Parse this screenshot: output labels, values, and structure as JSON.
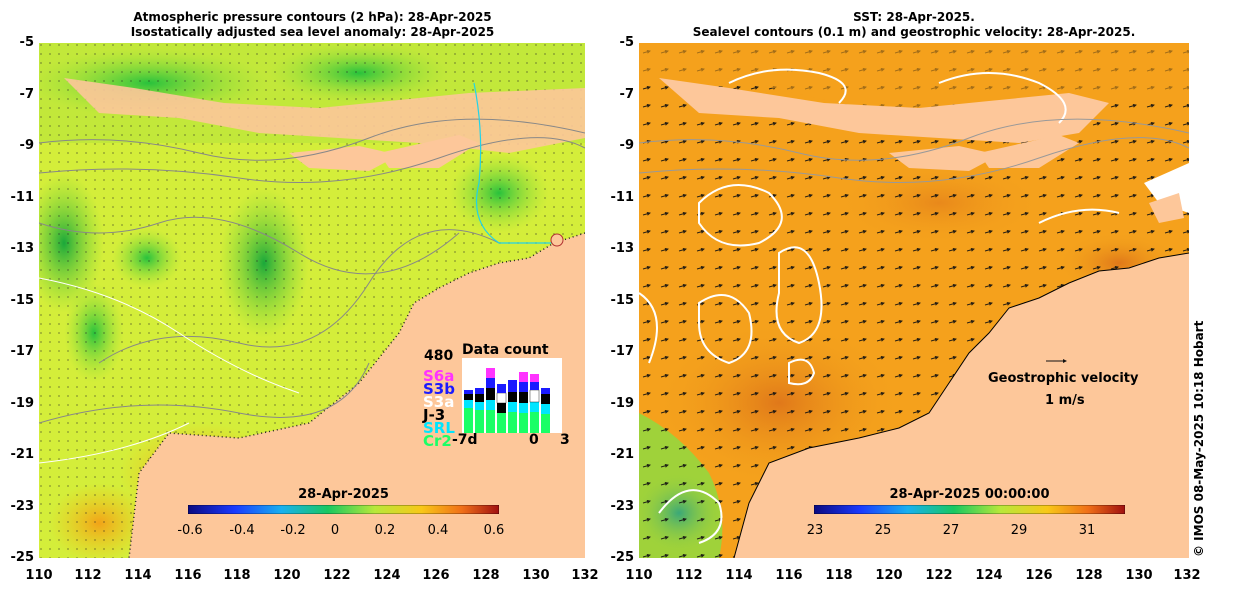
{
  "left_panel": {
    "title_line1": "Atmospheric pressure contours (2 hPa): 28-Apr-2025",
    "title_line2": "Isostatically adjusted sea level anomaly: 28-Apr-2025",
    "colorbar_title": "28-Apr-2025",
    "colorbar_ticks": [
      "-0.6",
      "-0.4",
      "-0.2",
      "0",
      "0.2",
      "0.4",
      "0.6"
    ],
    "data_count": {
      "title": "Data count",
      "max_label": "480",
      "missions": [
        {
          "name": "S6a",
          "color": "#ff33ff"
        },
        {
          "name": "S3b",
          "color": "#1a1aff"
        },
        {
          "name": "S3a",
          "color": "#ffffff"
        },
        {
          "name": "J-3",
          "color": "#000000"
        },
        {
          "name": "SRL",
          "color": "#00e5ff"
        },
        {
          "name": "Cr2",
          "color": "#1aff66"
        }
      ],
      "x_labels": [
        "-7d",
        "0",
        "3"
      ]
    }
  },
  "right_panel": {
    "title_line1": "SST: 28-Apr-2025.",
    "title_line2": "Sealevel contours (0.1 m) and geostrophic velocity: 28-Apr-2025.",
    "colorbar_title": "28-Apr-2025 00:00:00",
    "colorbar_ticks": [
      "23",
      "25",
      "27",
      "29",
      "31"
    ],
    "velocity_legend_title": "Geostrophic velocity",
    "velocity_legend_scale": "1 m/s"
  },
  "y_ticks": [
    "-5",
    "-7",
    "-9",
    "-11",
    "-13",
    "-15",
    "-17",
    "-19",
    "-21",
    "-23",
    "-25"
  ],
  "x_ticks": [
    "110",
    "112",
    "114",
    "116",
    "118",
    "120",
    "122",
    "124",
    "126",
    "128",
    "130",
    "132"
  ],
  "credit": "© IMOS 08-May-2025 10:18 Hobart",
  "colors": {
    "land": "#fdc79a",
    "sla_background": "#d6f23a",
    "sst_background": "#f7a41a"
  }
}
